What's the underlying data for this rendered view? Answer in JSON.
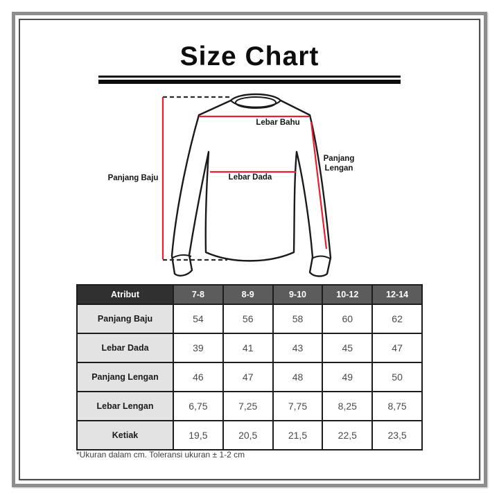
{
  "title": "Size Chart",
  "diagram": {
    "labels": {
      "shoulder_width": "Lebar Bahu",
      "chest_width": "Lebar Dada",
      "sleeve_length_line1": "Panjang",
      "sleeve_length_line2": "Lengan",
      "body_length": "Panjang Baju"
    },
    "colors": {
      "measure_line": "#ed1c2e",
      "outline": "#1a1a1a"
    }
  },
  "table": {
    "header": [
      "Atribut",
      "7-8",
      "8-9",
      "9-10",
      "10-12",
      "12-14"
    ],
    "rows": [
      {
        "label": "Panjang Baju",
        "values": [
          "54",
          "56",
          "58",
          "60",
          "62"
        ]
      },
      {
        "label": "Lebar Dada",
        "values": [
          "39",
          "41",
          "43",
          "45",
          "47"
        ]
      },
      {
        "label": "Panjang Lengan",
        "values": [
          "46",
          "47",
          "48",
          "49",
          "50"
        ]
      },
      {
        "label": "Lebar Lengan",
        "values": [
          "6,75",
          "7,25",
          "7,75",
          "8,25",
          "8,75"
        ]
      },
      {
        "label": "Ketiak",
        "values": [
          "19,5",
          "20,5",
          "21,5",
          "22,5",
          "23,5"
        ]
      }
    ],
    "footnote": "*Ukuran dalam cm. Toleransi ukuran ± 1-2 cm"
  }
}
